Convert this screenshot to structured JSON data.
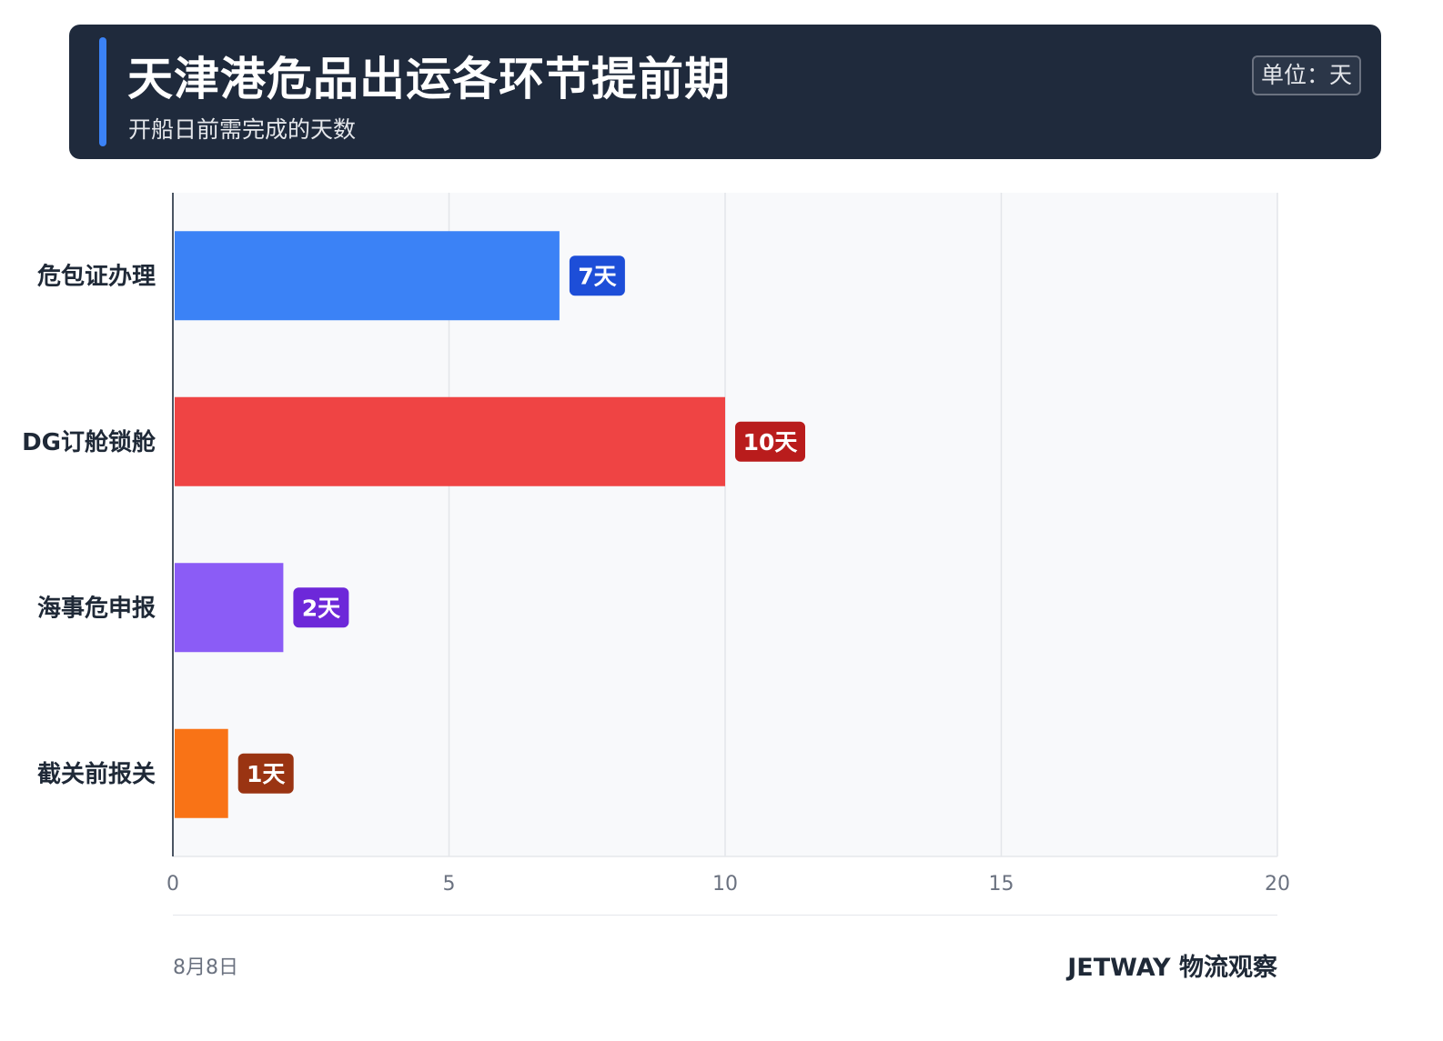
{
  "header": {
    "title": "天津港危品出运各环节提前期",
    "subtitle": "开船日前需完成的天数",
    "unit_badge": "单位：天"
  },
  "chart_data": {
    "type": "bar",
    "orientation": "horizontal",
    "categories": [
      "危包证办理",
      "DG订舱锁舱",
      "海事危申报",
      "截关前报关"
    ],
    "values": [
      7,
      10,
      2,
      1
    ],
    "data_labels": [
      "7天",
      "10天",
      "2天",
      "1天"
    ],
    "colors": [
      "#3b82f6",
      "#ef4444",
      "#8b5cf6",
      "#f97316"
    ],
    "label_colors": [
      "#1d4ed8",
      "#b91c1c",
      "#6d28d9",
      "#9a3412"
    ],
    "xlim": [
      0,
      20
    ],
    "xticks": [
      "0",
      "5",
      "10",
      "15",
      "20"
    ],
    "grid": true,
    "title": "",
    "xlabel": "",
    "ylabel": ""
  },
  "footer": {
    "date": "8月8日",
    "brand": "JETWAY 物流观察"
  }
}
